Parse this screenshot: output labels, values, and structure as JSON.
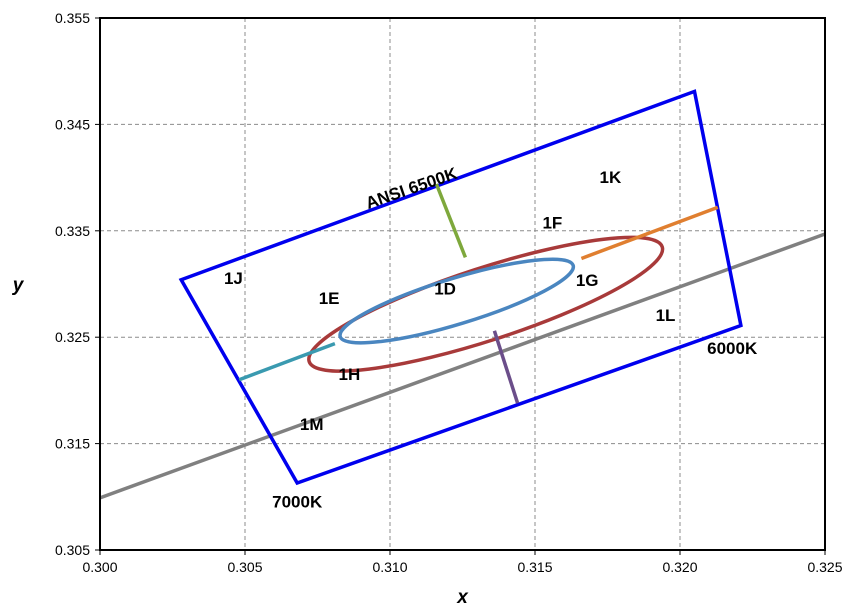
{
  "chart_data": {
    "type": "scatter",
    "xlabel": "x",
    "ylabel": "y",
    "xlim": [
      0.3,
      0.325
    ],
    "ylim": [
      0.305,
      0.355
    ],
    "x_ticks": [
      "0.300",
      "0.305",
      "0.310",
      "0.315",
      "0.320",
      "0.325"
    ],
    "y_ticks": [
      "0.305",
      "0.315",
      "0.325",
      "0.335",
      "0.345",
      "0.355"
    ],
    "grid": true,
    "colors": {
      "quadrangle": "#0000ee",
      "outer_ellipse": "#a83a3a",
      "inner_ellipse": "#4a86c0",
      "locus": "#808080",
      "upper_segment": "#7ea83c",
      "right_segment": "#e07f30",
      "lower_segment": "#6b4e8a",
      "left_segment": "#3a9ab0"
    },
    "quadrangle": [
      {
        "x": 0.3028,
        "y": 0.3304
      },
      {
        "x": 0.3205,
        "y": 0.3481
      },
      {
        "x": 0.3221,
        "y": 0.3261
      },
      {
        "x": 0.3068,
        "y": 0.3113
      }
    ],
    "locus": [
      {
        "x": 0.3,
        "y": 0.3099
      },
      {
        "x": 0.325,
        "y": 0.3347
      }
    ],
    "outer_ellipse": {
      "cx": 0.3133,
      "cy": 0.3281,
      "rx": 0.0064,
      "ry": 0.0068,
      "angle_deg": 18
    },
    "inner_ellipse": {
      "cx": 0.3123,
      "cy": 0.3284,
      "rx": 0.0042,
      "ry": 0.0043,
      "angle_deg": 17
    },
    "segments": [
      {
        "name": "upper",
        "from": {
          "x": 0.3116,
          "y": 0.3394
        },
        "to": {
          "x": 0.3126,
          "y": 0.3325
        }
      },
      {
        "name": "right",
        "from": {
          "x": 0.3166,
          "y": 0.3324
        },
        "to": {
          "x": 0.3213,
          "y": 0.3372
        }
      },
      {
        "name": "lower",
        "from": {
          "x": 0.3136,
          "y": 0.3256
        },
        "to": {
          "x": 0.3144,
          "y": 0.3188
        }
      },
      {
        "name": "left",
        "from": {
          "x": 0.3081,
          "y": 0.3244
        },
        "to": {
          "x": 0.3048,
          "y": 0.321
        }
      }
    ],
    "annotations": [
      {
        "text": "ANSI 6500K",
        "x": 0.3108,
        "y": 0.3385,
        "rotate": -19
      },
      {
        "text": "1K",
        "x": 0.3176,
        "y": 0.3395
      },
      {
        "text": "1F",
        "x": 0.3156,
        "y": 0.3352
      },
      {
        "text": "1J",
        "x": 0.3046,
        "y": 0.33
      },
      {
        "text": "1E",
        "x": 0.3079,
        "y": 0.3281
      },
      {
        "text": "1D",
        "x": 0.3119,
        "y": 0.329
      },
      {
        "text": "1G",
        "x": 0.3168,
        "y": 0.3298
      },
      {
        "text": "1L",
        "x": 0.3195,
        "y": 0.3265
      },
      {
        "text": "6000K",
        "x": 0.3218,
        "y": 0.3234
      },
      {
        "text": "1H",
        "x": 0.3086,
        "y": 0.321
      },
      {
        "text": "1M",
        "x": 0.3073,
        "y": 0.3163
      },
      {
        "text": "7000K",
        "x": 0.3068,
        "y": 0.309
      }
    ]
  }
}
